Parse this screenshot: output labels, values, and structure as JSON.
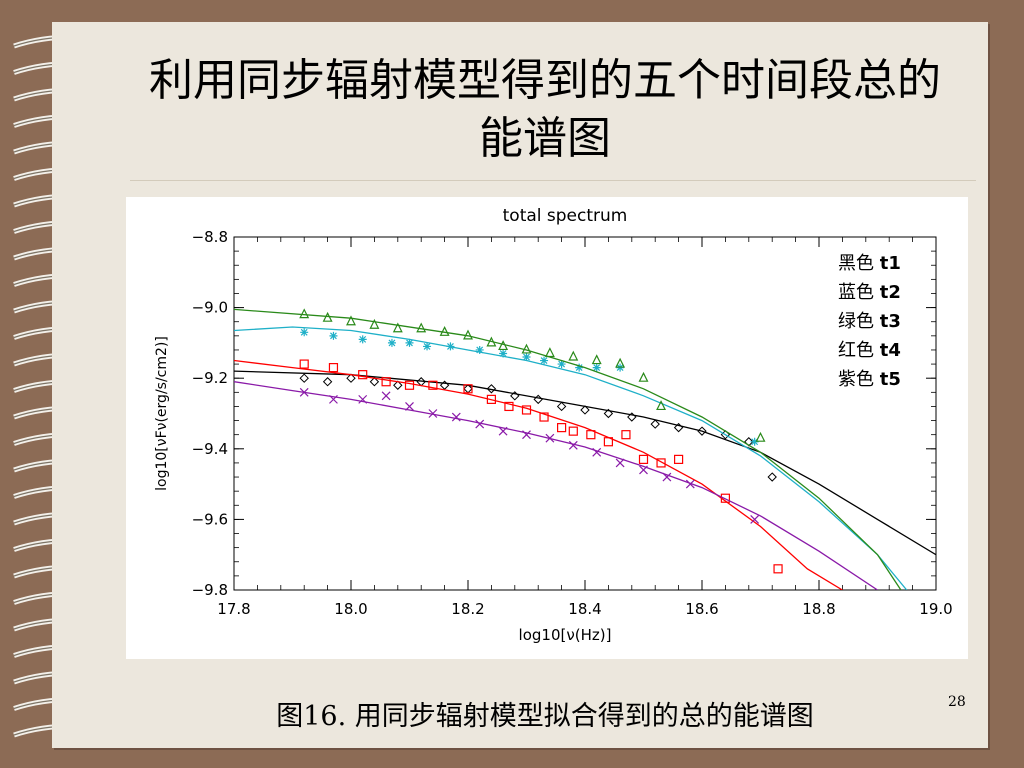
{
  "slide": {
    "title": "利用同步辐射模型得到的五个时间段总的能谱图",
    "caption": "图16. 用同步辐射模型拟合得到的总的能谱图",
    "page_number": "28"
  },
  "colors": {
    "background": "#8c6b55",
    "paper": "#ece7dd",
    "t1": "#000000",
    "t2": "#1fb0c8",
    "t3": "#2a8a1a",
    "t4": "#ff0000",
    "t5": "#8a1aa8"
  },
  "chart_data": {
    "type": "scatter",
    "title": "total spectrum",
    "xlabel": "log10[ν(Hz)]",
    "ylabel": "log10[νFν(erg/s/cm2)]",
    "xlim": [
      17.8,
      19.0
    ],
    "ylim": [
      -9.8,
      -8.8
    ],
    "xticks": [
      "17.8",
      "18.0",
      "18.2",
      "18.4",
      "18.6",
      "18.8",
      "19.0"
    ],
    "yticks": [
      "-8.8",
      "-9.0",
      "-9.2",
      "-9.4",
      "-9.6",
      "-9.8"
    ],
    "legend_position": "top-right",
    "series": [
      {
        "name": "黑色",
        "tag": "t1",
        "color": "#000000",
        "marker": "diamond",
        "points": [
          [
            17.92,
            -9.2
          ],
          [
            17.96,
            -9.21
          ],
          [
            18.0,
            -9.2
          ],
          [
            18.04,
            -9.21
          ],
          [
            18.08,
            -9.22
          ],
          [
            18.12,
            -9.21
          ],
          [
            18.16,
            -9.22
          ],
          [
            18.2,
            -9.23
          ],
          [
            18.24,
            -9.23
          ],
          [
            18.28,
            -9.25
          ],
          [
            18.32,
            -9.26
          ],
          [
            18.36,
            -9.28
          ],
          [
            18.4,
            -9.29
          ],
          [
            18.44,
            -9.3
          ],
          [
            18.48,
            -9.31
          ],
          [
            18.52,
            -9.33
          ],
          [
            18.56,
            -9.34
          ],
          [
            18.6,
            -9.35
          ],
          [
            18.64,
            -9.36
          ],
          [
            18.68,
            -9.38
          ],
          [
            18.72,
            -9.48
          ]
        ],
        "fit": [
          [
            17.8,
            -9.18
          ],
          [
            18.0,
            -9.19
          ],
          [
            18.2,
            -9.22
          ],
          [
            18.4,
            -9.28
          ],
          [
            18.5,
            -9.31
          ],
          [
            18.6,
            -9.35
          ],
          [
            18.7,
            -9.41
          ],
          [
            18.8,
            -9.5
          ],
          [
            18.9,
            -9.6
          ],
          [
            19.0,
            -9.7
          ]
        ]
      },
      {
        "name": "蓝色",
        "tag": "t2",
        "color": "#1fb0c8",
        "marker": "star",
        "points": [
          [
            17.92,
            -9.07
          ],
          [
            17.97,
            -9.08
          ],
          [
            18.02,
            -9.09
          ],
          [
            18.07,
            -9.1
          ],
          [
            18.1,
            -9.1
          ],
          [
            18.13,
            -9.11
          ],
          [
            18.17,
            -9.11
          ],
          [
            18.22,
            -9.12
          ],
          [
            18.26,
            -9.13
          ],
          [
            18.3,
            -9.14
          ],
          [
            18.33,
            -9.15
          ],
          [
            18.36,
            -9.16
          ],
          [
            18.39,
            -9.17
          ],
          [
            18.42,
            -9.17
          ],
          [
            18.46,
            -9.17
          ],
          [
            18.69,
            -9.38
          ]
        ],
        "fit": [
          [
            17.8,
            -9.065
          ],
          [
            17.9,
            -9.055
          ],
          [
            18.0,
            -9.065
          ],
          [
            18.1,
            -9.09
          ],
          [
            18.2,
            -9.12
          ],
          [
            18.3,
            -9.15
          ],
          [
            18.4,
            -9.19
          ],
          [
            18.5,
            -9.25
          ],
          [
            18.6,
            -9.32
          ],
          [
            18.7,
            -9.42
          ],
          [
            18.8,
            -9.55
          ],
          [
            18.9,
            -9.7
          ],
          [
            18.95,
            -9.8
          ]
        ]
      },
      {
        "name": "绿色",
        "tag": "t3",
        "color": "#2a8a1a",
        "marker": "triangle",
        "points": [
          [
            17.92,
            -9.02
          ],
          [
            17.96,
            -9.03
          ],
          [
            18.0,
            -9.04
          ],
          [
            18.04,
            -9.05
          ],
          [
            18.08,
            -9.06
          ],
          [
            18.12,
            -9.06
          ],
          [
            18.16,
            -9.07
          ],
          [
            18.2,
            -9.08
          ],
          [
            18.24,
            -9.1
          ],
          [
            18.26,
            -9.11
          ],
          [
            18.3,
            -9.12
          ],
          [
            18.34,
            -9.13
          ],
          [
            18.38,
            -9.14
          ],
          [
            18.42,
            -9.15
          ],
          [
            18.46,
            -9.16
          ],
          [
            18.5,
            -9.2
          ],
          [
            18.53,
            -9.28
          ],
          [
            18.7,
            -9.37
          ]
        ],
        "fit": [
          [
            17.8,
            -9.005
          ],
          [
            18.0,
            -9.03
          ],
          [
            18.2,
            -9.08
          ],
          [
            18.3,
            -9.12
          ],
          [
            18.4,
            -9.17
          ],
          [
            18.5,
            -9.23
          ],
          [
            18.6,
            -9.31
          ],
          [
            18.7,
            -9.41
          ],
          [
            18.8,
            -9.54
          ],
          [
            18.9,
            -9.7
          ],
          [
            18.94,
            -9.8
          ]
        ]
      },
      {
        "name": "红色",
        "tag": "t4",
        "color": "#ff0000",
        "marker": "square",
        "points": [
          [
            17.92,
            -9.16
          ],
          [
            17.97,
            -9.17
          ],
          [
            18.02,
            -9.19
          ],
          [
            18.06,
            -9.21
          ],
          [
            18.1,
            -9.22
          ],
          [
            18.14,
            -9.22
          ],
          [
            18.2,
            -9.23
          ],
          [
            18.24,
            -9.26
          ],
          [
            18.27,
            -9.28
          ],
          [
            18.3,
            -9.29
          ],
          [
            18.33,
            -9.31
          ],
          [
            18.36,
            -9.34
          ],
          [
            18.38,
            -9.35
          ],
          [
            18.41,
            -9.36
          ],
          [
            18.44,
            -9.38
          ],
          [
            18.47,
            -9.36
          ],
          [
            18.5,
            -9.43
          ],
          [
            18.53,
            -9.44
          ],
          [
            18.56,
            -9.43
          ],
          [
            18.64,
            -9.54
          ],
          [
            18.73,
            -9.74
          ]
        ],
        "fit": [
          [
            17.8,
            -9.15
          ],
          [
            17.9,
            -9.17
          ],
          [
            18.0,
            -9.19
          ],
          [
            18.1,
            -9.215
          ],
          [
            18.2,
            -9.245
          ],
          [
            18.3,
            -9.285
          ],
          [
            18.4,
            -9.34
          ],
          [
            18.5,
            -9.41
          ],
          [
            18.6,
            -9.5
          ],
          [
            18.7,
            -9.62
          ],
          [
            18.78,
            -9.74
          ],
          [
            18.84,
            -9.8
          ]
        ]
      },
      {
        "name": "紫色",
        "tag": "t5",
        "color": "#8a1aa8",
        "marker": "x",
        "points": [
          [
            17.92,
            -9.24
          ],
          [
            17.97,
            -9.26
          ],
          [
            18.02,
            -9.26
          ],
          [
            18.06,
            -9.25
          ],
          [
            18.1,
            -9.28
          ],
          [
            18.14,
            -9.3
          ],
          [
            18.18,
            -9.31
          ],
          [
            18.22,
            -9.33
          ],
          [
            18.26,
            -9.35
          ],
          [
            18.3,
            -9.36
          ],
          [
            18.34,
            -9.37
          ],
          [
            18.38,
            -9.39
          ],
          [
            18.42,
            -9.41
          ],
          [
            18.46,
            -9.44
          ],
          [
            18.5,
            -9.46
          ],
          [
            18.54,
            -9.48
          ],
          [
            18.58,
            -9.5
          ],
          [
            18.69,
            -9.6
          ]
        ],
        "fit": [
          [
            17.8,
            -9.21
          ],
          [
            17.9,
            -9.235
          ],
          [
            18.0,
            -9.26
          ],
          [
            18.1,
            -9.29
          ],
          [
            18.2,
            -9.32
          ],
          [
            18.3,
            -9.355
          ],
          [
            18.4,
            -9.395
          ],
          [
            18.5,
            -9.45
          ],
          [
            18.6,
            -9.51
          ],
          [
            18.7,
            -9.59
          ],
          [
            18.8,
            -9.69
          ],
          [
            18.9,
            -9.8
          ]
        ]
      }
    ]
  }
}
